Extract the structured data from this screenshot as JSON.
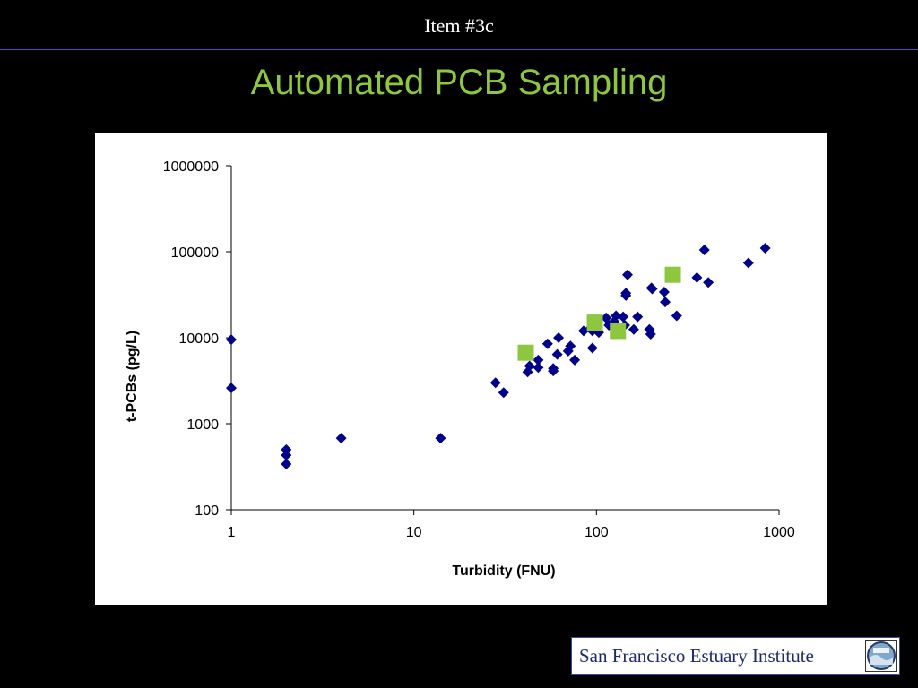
{
  "header": {
    "item_label": "Item #3c",
    "title": "Automated PCB Sampling"
  },
  "footer": {
    "organization": "San Francisco Estuary Institute",
    "logo_icon": "sfei-logo-icon"
  },
  "colors": {
    "background": "#000000",
    "title": "#8dc63f",
    "series_diamond": "#00008b",
    "series_square": "#8dc63f"
  },
  "chart_data": {
    "type": "scatter",
    "xlabel": "Turbidity (FNU)",
    "ylabel": "t-PCBs (pg/L)",
    "x_scale": "log",
    "y_scale": "log",
    "xlim": [
      1,
      1000
    ],
    "ylim": [
      100,
      1000000
    ],
    "x_ticks": [
      "1",
      "10",
      "100",
      "1000"
    ],
    "y_ticks": [
      "100",
      "1000",
      "10000",
      "100000",
      "1000000"
    ],
    "grid": false,
    "legend": "none",
    "series": [
      {
        "marker": "diamond",
        "color": "#00008b",
        "points": [
          [
            1.0,
            9500
          ],
          [
            1.0,
            2600
          ],
          [
            2.0,
            500
          ],
          [
            2.0,
            430
          ],
          [
            2.0,
            340
          ],
          [
            4.0,
            680
          ],
          [
            14.0,
            680
          ],
          [
            28,
            3000
          ],
          [
            31,
            2300
          ],
          [
            42,
            4000
          ],
          [
            43,
            4700
          ],
          [
            48,
            5500
          ],
          [
            48,
            4500
          ],
          [
            54,
            8500
          ],
          [
            58,
            4400
          ],
          [
            58,
            4100
          ],
          [
            61,
            6400
          ],
          [
            62,
            10000
          ],
          [
            70,
            7000
          ],
          [
            72,
            8000
          ],
          [
            76,
            5500
          ],
          [
            85,
            12000
          ],
          [
            93,
            13000
          ],
          [
            95,
            12000
          ],
          [
            95,
            7600
          ],
          [
            103,
            11500
          ],
          [
            113,
            17000
          ],
          [
            117,
            14000
          ],
          [
            125,
            15500
          ],
          [
            128,
            18000
          ],
          [
            140,
            17500
          ],
          [
            143,
            14000
          ],
          [
            145,
            31000
          ],
          [
            145,
            33000
          ],
          [
            148,
            54000
          ],
          [
            160,
            12500
          ],
          [
            168,
            17500
          ],
          [
            195,
            12500
          ],
          [
            198,
            11000
          ],
          [
            200,
            38000
          ],
          [
            202,
            37000
          ],
          [
            235,
            34000
          ],
          [
            238,
            26000
          ],
          [
            275,
            18000
          ],
          [
            355,
            50000
          ],
          [
            390,
            105000
          ],
          [
            410,
            44000
          ],
          [
            680,
            74000
          ],
          [
            840,
            110000
          ]
        ]
      },
      {
        "marker": "square",
        "color": "#8dc63f",
        "points": [
          [
            41,
            6700
          ],
          [
            98,
            15000
          ],
          [
            131,
            12000
          ],
          [
            262,
            54000
          ]
        ]
      }
    ]
  }
}
